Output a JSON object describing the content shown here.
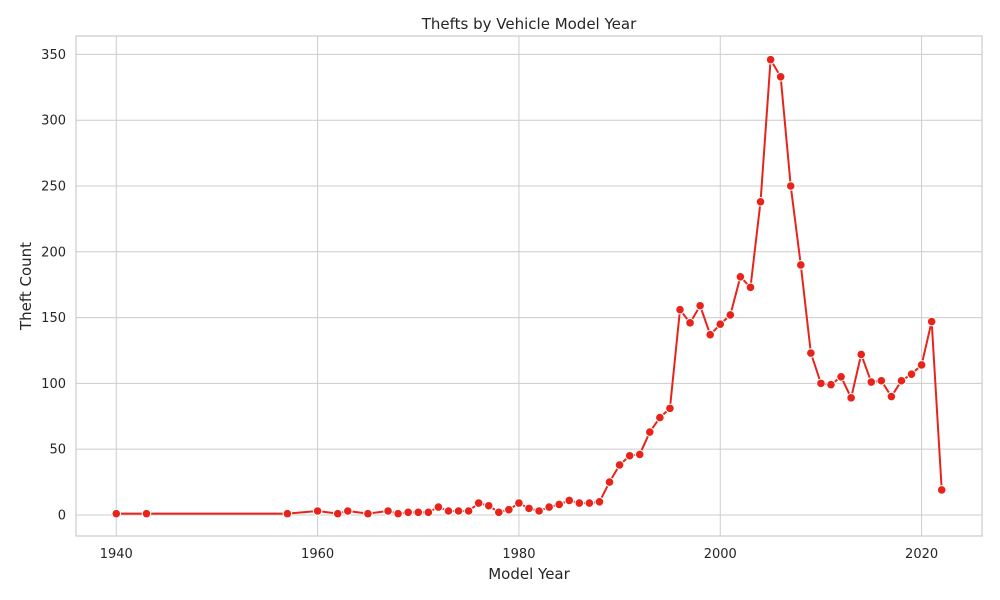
{
  "chart_data": {
    "type": "line",
    "title": "Thefts by Vehicle Model Year",
    "xlabel": "Model Year",
    "ylabel": "Theft Count",
    "xlim": [
      1936,
      2026
    ],
    "ylim": [
      -16,
      364
    ],
    "xticks": [
      1940,
      1960,
      1980,
      2000,
      2020
    ],
    "yticks": [
      0,
      50,
      100,
      150,
      200,
      250,
      300,
      350
    ],
    "grid": true,
    "line_color": "#e8241a",
    "marker_color": "#e8241a",
    "marker_edge_color": "#ffffff",
    "series": [
      {
        "x": [
          1940,
          1943,
          1957,
          1960,
          1962,
          1963,
          1965,
          1967,
          1968,
          1969,
          1970,
          1971,
          1972,
          1973,
          1974,
          1975,
          1976,
          1977,
          1978,
          1979,
          1980,
          1981,
          1982,
          1983,
          1984,
          1985,
          1986,
          1987,
          1988,
          1989,
          1990,
          1991,
          1992,
          1993,
          1994,
          1995,
          1996,
          1997,
          1998,
          1999,
          2000,
          2001,
          2002,
          2003,
          2004,
          2005,
          2006,
          2007,
          2008,
          2009,
          2010,
          2011,
          2012,
          2013,
          2014,
          2015,
          2016,
          2017,
          2018,
          2019,
          2020,
          2021,
          2022
        ],
        "y": [
          1,
          1,
          1,
          3,
          1,
          3,
          1,
          3,
          1,
          2,
          2,
          2,
          6,
          3,
          3,
          3,
          9,
          7,
          2,
          4,
          9,
          5,
          3,
          6,
          8,
          11,
          9,
          9,
          10,
          25,
          38,
          45,
          46,
          63,
          74,
          81,
          156,
          146,
          159,
          137,
          145,
          152,
          181,
          173,
          238,
          346,
          333,
          250,
          190,
          123,
          100,
          99,
          105,
          89,
          122,
          101,
          102,
          90,
          102,
          107,
          114,
          147,
          19
        ]
      }
    ]
  }
}
